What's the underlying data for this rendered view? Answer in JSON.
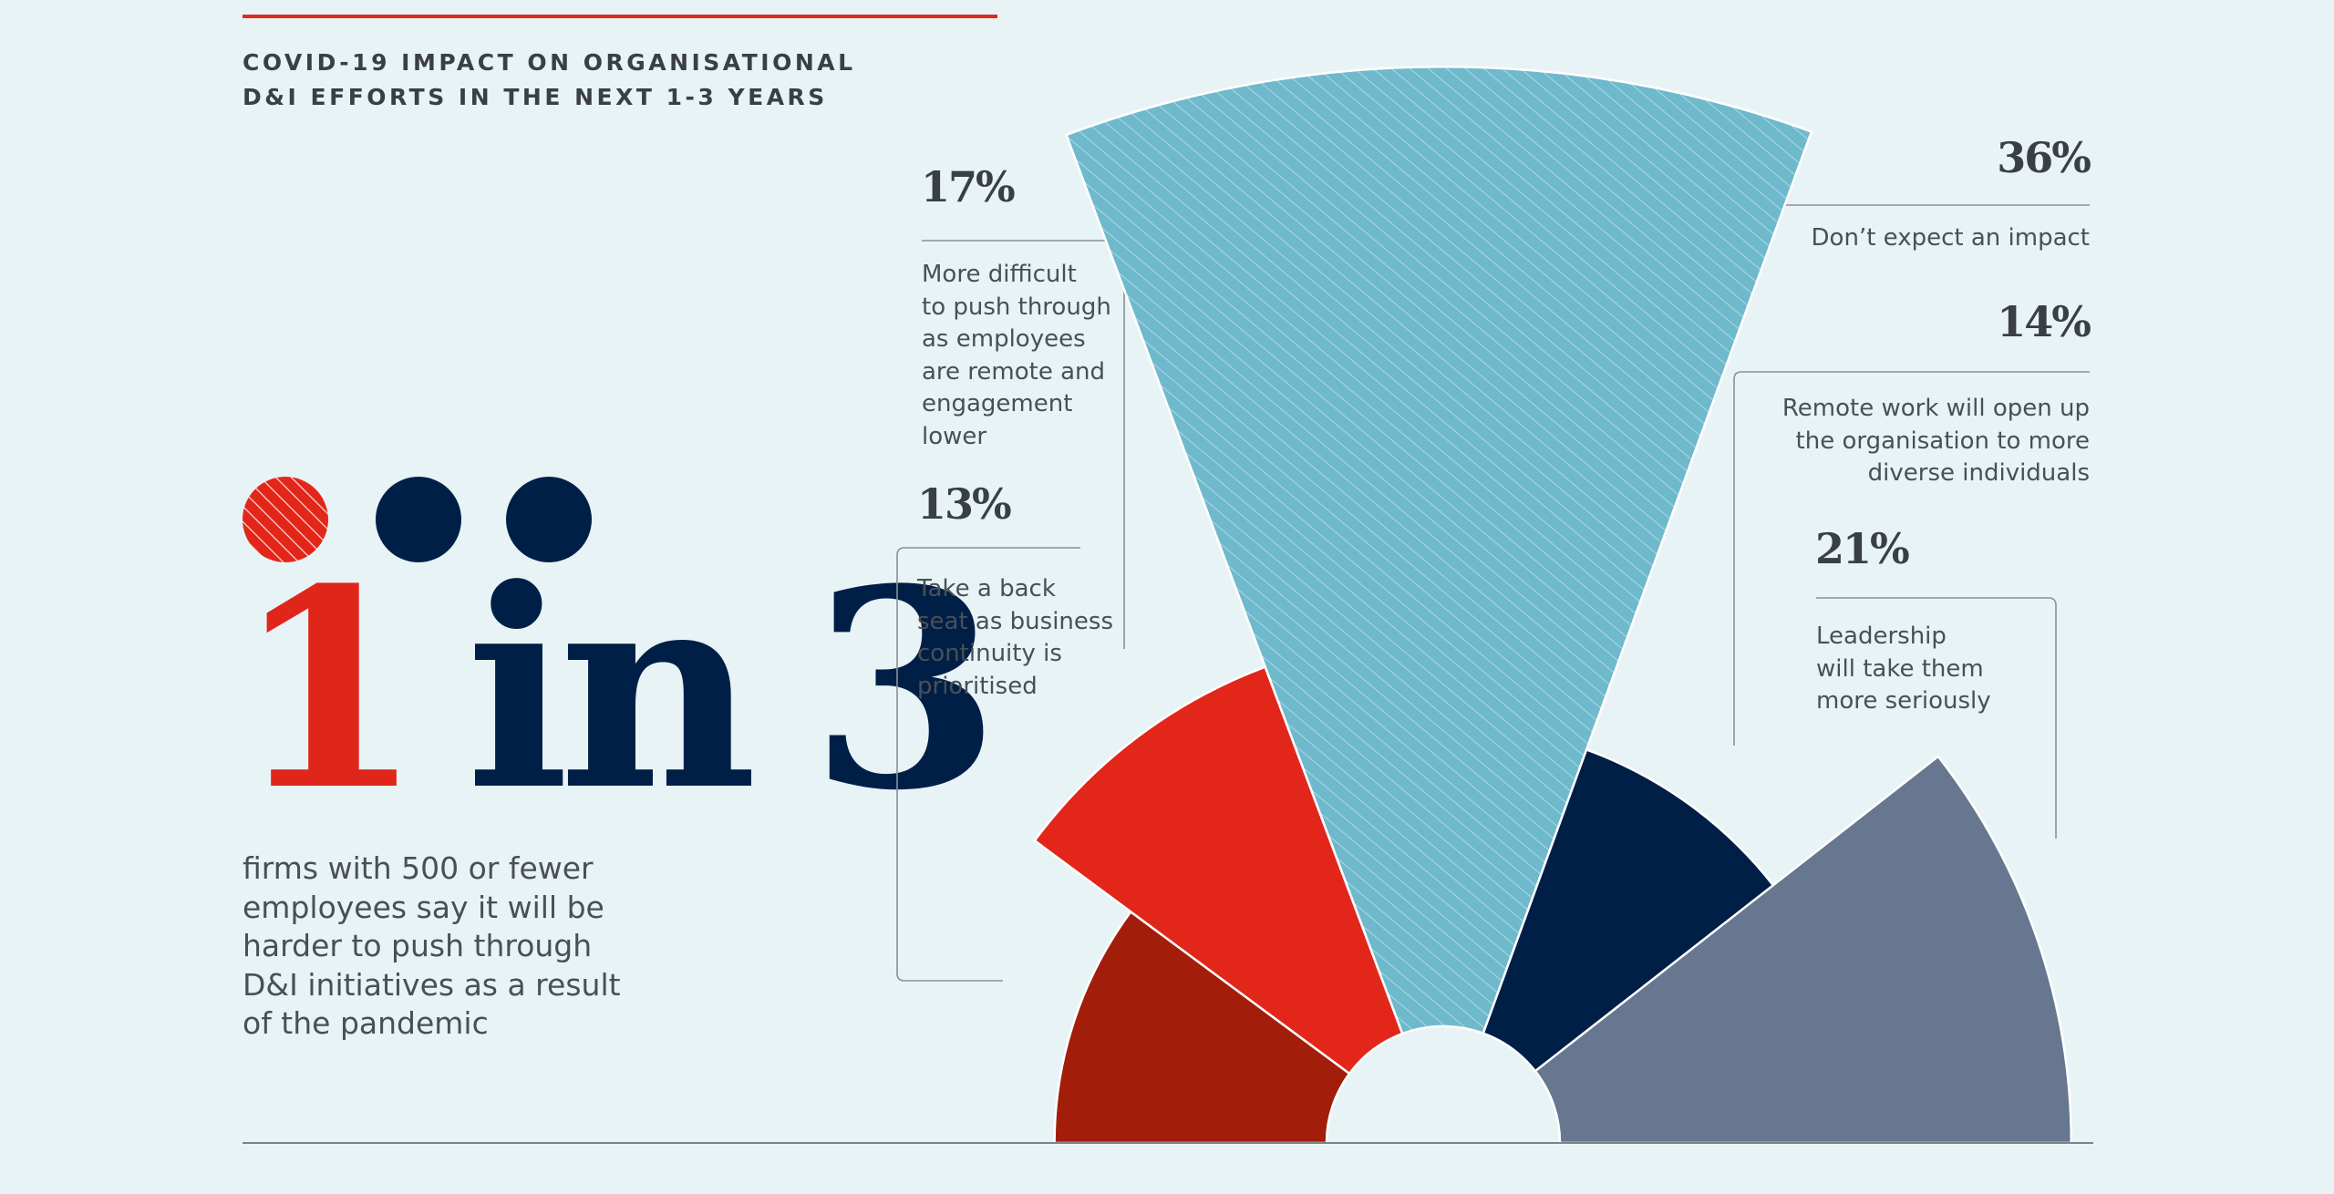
{
  "title": {
    "line1": "COVID-19 IMPACT ON ORGANISATIONAL",
    "line2": "D&I EFFORTS IN THE NEXT 1-3 YEARS"
  },
  "headline": {
    "n1": "1",
    "word": "in",
    "n2": "3"
  },
  "subtext": {
    "l1": "firms with 500 or fewer",
    "l2": "employees say it will be",
    "l3": "harder to push through",
    "l4": "D&I initiatives as a result",
    "l5": "of the pandemic"
  },
  "colors": {
    "accent_red": "#e3261a",
    "dark_red": "#a31e0a",
    "light_blue": "#6fb9cc",
    "navy": "#001f47",
    "slate": "#66778f",
    "background": "#e8f3f6"
  },
  "chart_data": {
    "type": "polar_area",
    "series": [
      {
        "value": 13,
        "value_label": "13%",
        "color": "#a31e0a",
        "lines": [
          "Take a back",
          "seat as business",
          "continuity is",
          "prioritised"
        ]
      },
      {
        "value": 17,
        "value_label": "17%",
        "color": "#e3261a",
        "lines": [
          "More difficult",
          "to push through",
          "as employees",
          "are remote and",
          "engagement",
          "lower"
        ]
      },
      {
        "value": 36,
        "value_label": "36%",
        "color": "#6fb9cc",
        "hatched": true,
        "lines": [
          "Don’t expect an impact"
        ]
      },
      {
        "value": 14,
        "value_label": "14%",
        "color": "#001f47",
        "lines": [
          "Remote work will open up",
          "the organisation to more",
          "diverse individuals"
        ]
      },
      {
        "value": 21,
        "value_label": "21%",
        "color": "#66778f",
        "lines": [
          "Leadership",
          "will take them",
          "more seriously"
        ]
      }
    ]
  }
}
